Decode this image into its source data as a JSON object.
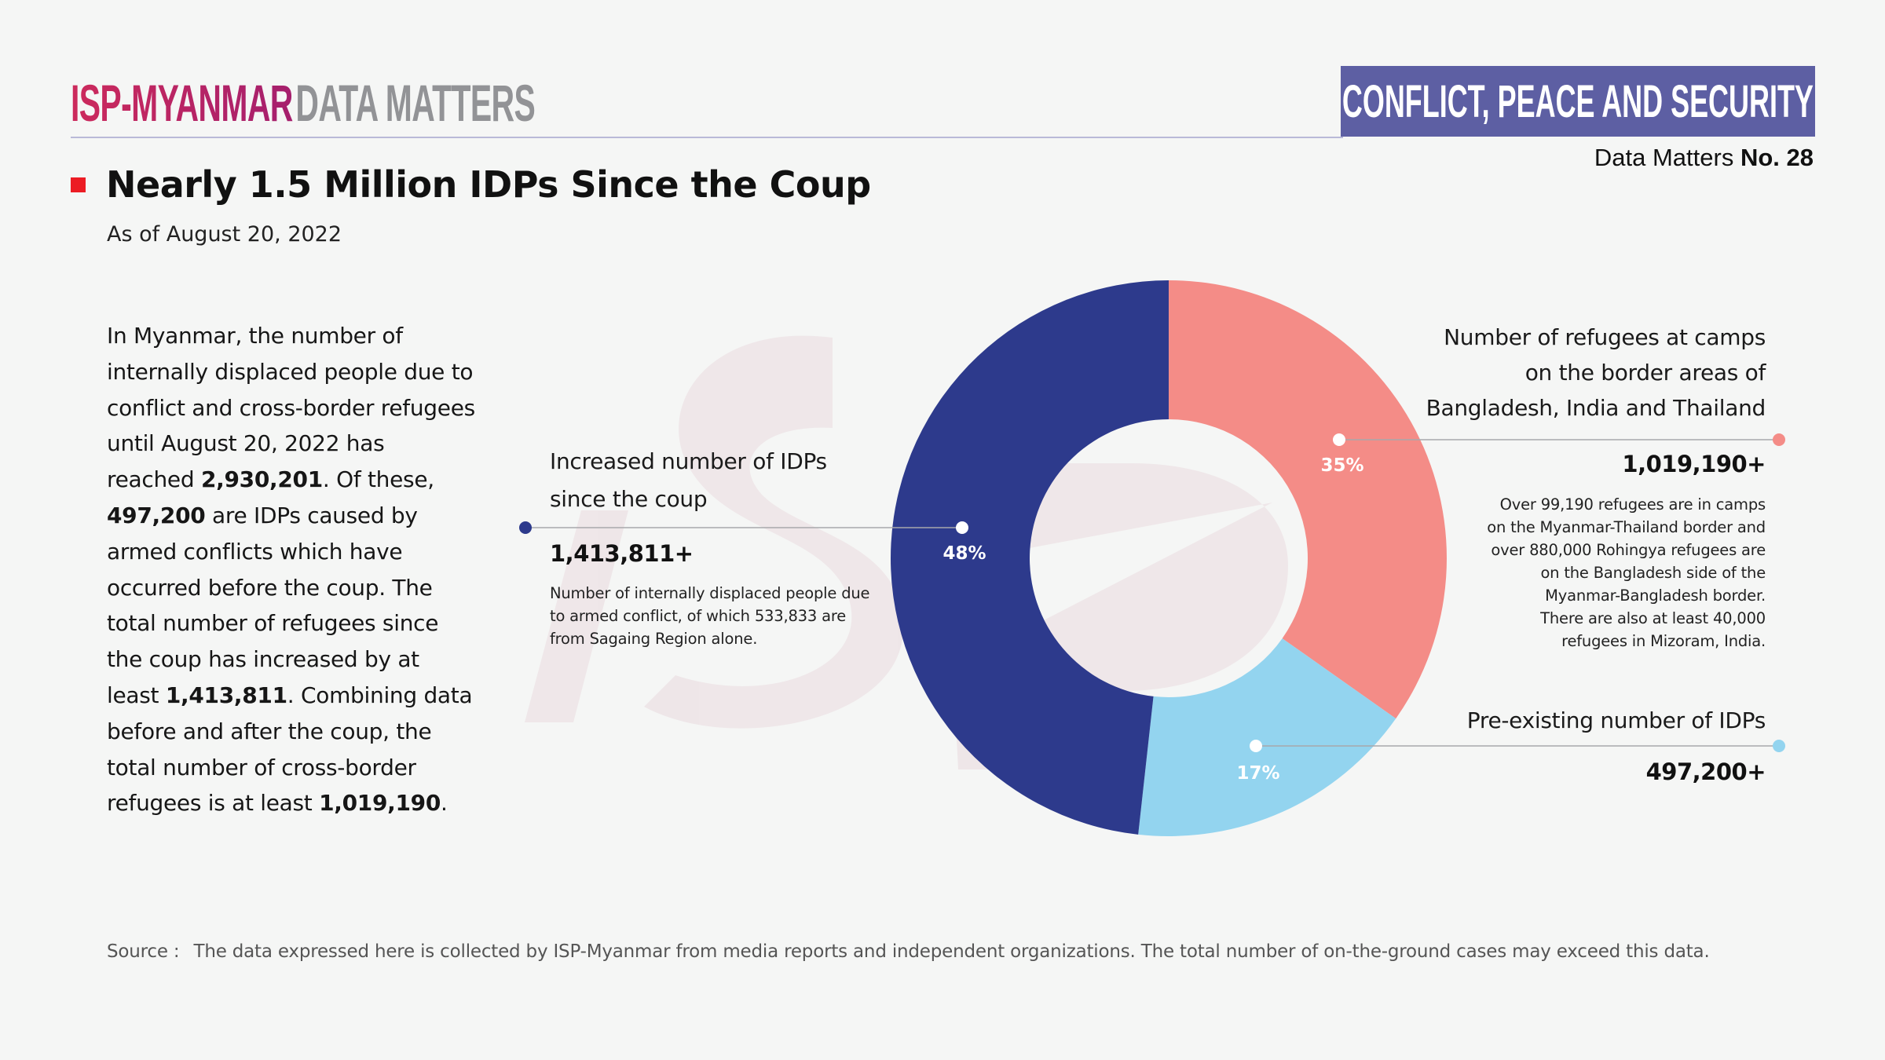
{
  "header": {
    "brand_primary": "ISP-MYANMAR",
    "brand_secondary": "DATA MATTERS",
    "category": "CONFLICT, PEACE AND SECURITY",
    "issue_prefix": "Data Matters",
    "issue_number": "No. 28"
  },
  "title": "Nearly 1.5 Million IDPs Since the Coup",
  "subtitle": "As of August 20, 2022",
  "body": {
    "segments": [
      {
        "text": "In Myanmar, the number of internally displaced people due to conflict and cross-border refugees until August 20, 2022 has reached ",
        "bold": false
      },
      {
        "text": "2,930,201",
        "bold": true
      },
      {
        "text": ". Of these, ",
        "bold": false
      },
      {
        "text": "497,200",
        "bold": true
      },
      {
        "text": " are IDPs caused by armed conflicts which have occurred before the coup. The total number of refugees since the coup has increased by at least ",
        "bold": false
      },
      {
        "text": "1,413,811",
        "bold": true
      },
      {
        "text": ". Combining data before and after the coup, the total number of cross-border refugees is at least ",
        "bold": false
      },
      {
        "text": "1,019,190",
        "bold": true
      },
      {
        "text": ".",
        "bold": false
      }
    ]
  },
  "annotations": {
    "increased_idps": {
      "title": "Increased number of IDPs since the coup",
      "value": "1,413,811+",
      "description": "Number of internally displaced people due to armed conflict, of which 533,833 are from Sagaing Region alone."
    },
    "refugees_camps": {
      "title_lines": [
        "Number of refugees at camps",
        "on the border areas of",
        "Bangladesh, India and Thailand"
      ],
      "value": "1,019,190+",
      "description_lines": [
        "Over 99,190 refugees are in camps",
        "on the Myanmar-Thailand border and",
        "over 880,000 Rohingya refugees are",
        "on the Bangladesh side of the",
        "Myanmar-Bangladesh border.",
        "There are also at least 40,000",
        "refugees in Mizoram, India."
      ]
    },
    "preexisting_idps": {
      "title": "Pre-existing number of IDPs",
      "value": "497,200+"
    }
  },
  "colors": {
    "increased_idps": "#2d3a8c",
    "refugees_camps": "#f48c87",
    "preexisting_idps": "#93d4ef",
    "title_marker": "#ec1c24",
    "category_bg": "#5d5fa3"
  },
  "chart_data": {
    "type": "pie",
    "donut": true,
    "title": "Nearly 1.5 Million IDPs Since the Coup",
    "categories": [
      "Number of refugees at camps on the border areas of Bangladesh, India and Thailand",
      "Pre-existing number of IDPs",
      "Increased number of IDPs since the coup"
    ],
    "values": [
      1019190,
      497200,
      1413811
    ],
    "percent_labels": [
      "35%",
      "17%",
      "48%"
    ],
    "start": "top, clockwise",
    "total": 2930201
  },
  "source": {
    "label": "Source :",
    "text": "The data expressed here is collected by ISP-Myanmar from media reports and independent organizations. The total number of on-the-ground cases may exceed this data."
  }
}
